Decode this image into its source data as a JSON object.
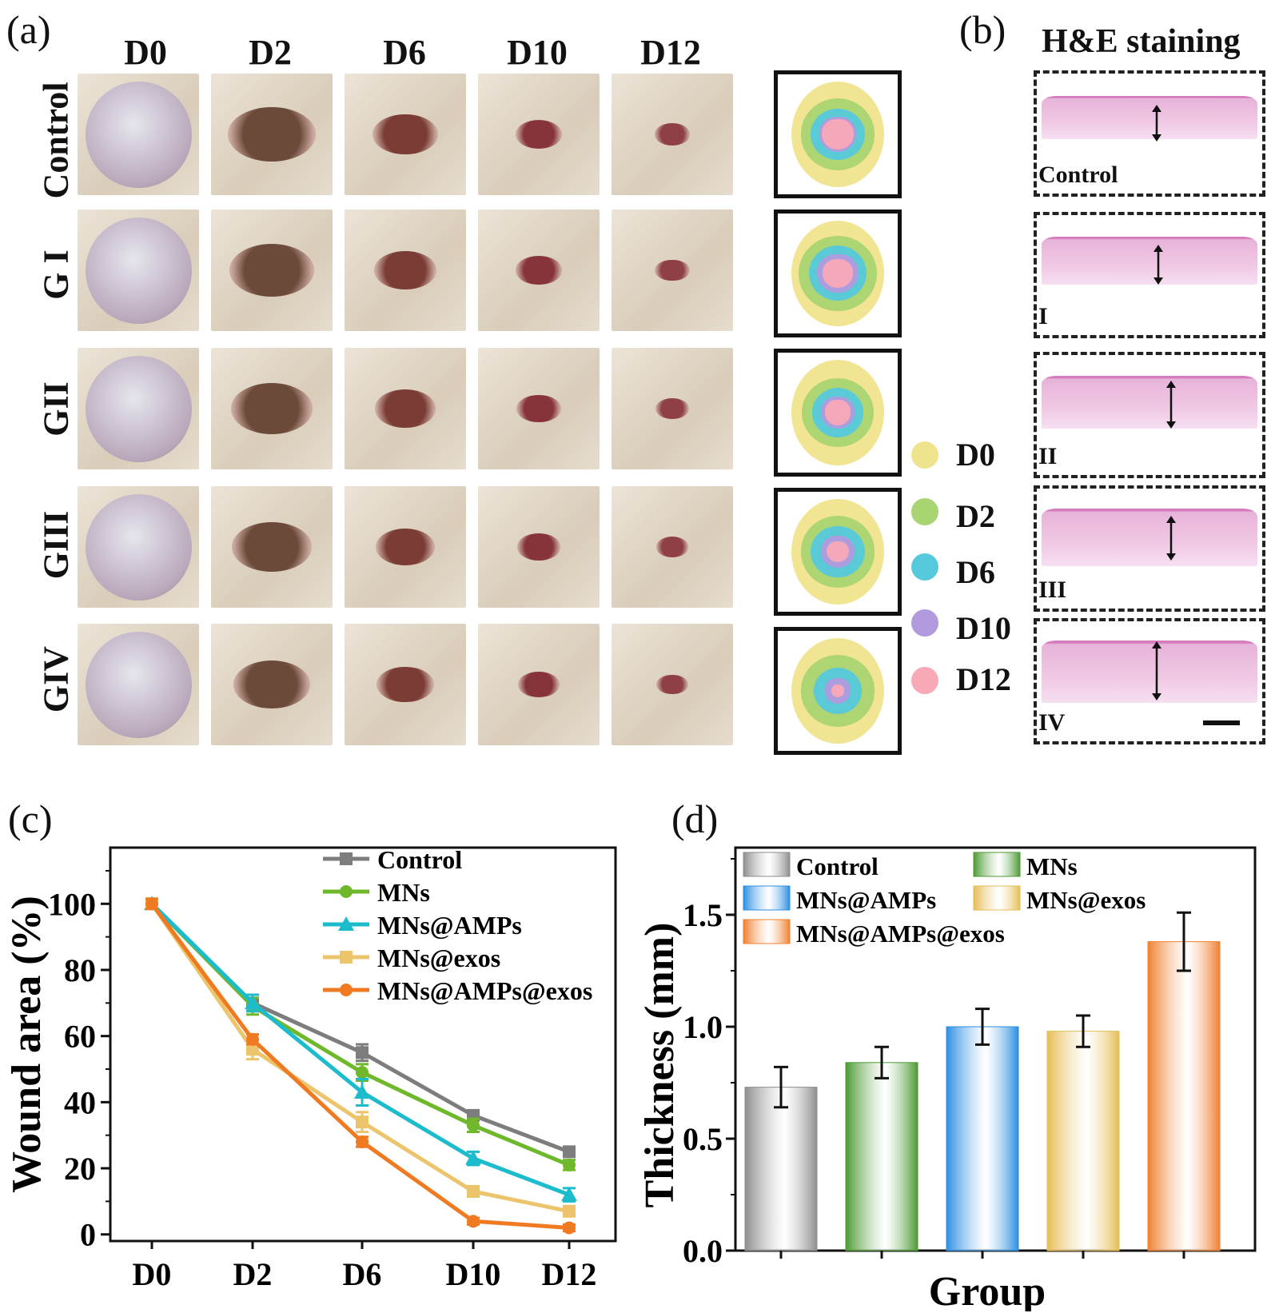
{
  "panel_a": {
    "label": "(a)",
    "days": [
      "D0",
      "D2",
      "D6",
      "D10",
      "D12"
    ],
    "groups": [
      "Control",
      "G I",
      "GII",
      "GIII",
      "GIV"
    ],
    "legend": [
      {
        "day": "D0",
        "color": "#f0e38d"
      },
      {
        "day": "D2",
        "color": "#a9d472"
      },
      {
        "day": "D6",
        "color": "#56c9dc"
      },
      {
        "day": "D10",
        "color": "#b19ade"
      },
      {
        "day": "D12",
        "color": "#f8a9b6"
      }
    ]
  },
  "panel_b": {
    "label": "(b)",
    "title": "H&E staining",
    "samples": [
      "Control",
      "I",
      "II",
      "III",
      "IV"
    ]
  },
  "panel_c": {
    "label": "(c)"
  },
  "panel_d": {
    "label": "(d)"
  },
  "chart_data": [
    {
      "type": "line",
      "title": "",
      "xlabel": "",
      "ylabel": "Wound area (%)",
      "x": [
        "D0",
        "D2",
        "D6",
        "D10",
        "D12"
      ],
      "ylim": [
        -2,
        117
      ],
      "yticks": [
        0,
        20,
        40,
        60,
        80,
        100
      ],
      "legend_position": "top-right",
      "series": [
        {
          "name": "Control",
          "color": "#7d7d7d",
          "marker": "square",
          "values": [
            100,
            70,
            55,
            36,
            25
          ],
          "errors": [
            1.5,
            2.5,
            2.5,
            1.5,
            1.5
          ]
        },
        {
          "name": "MNs",
          "color": "#6fb82b",
          "marker": "circle",
          "values": [
            100,
            69,
            49,
            33,
            21
          ],
          "errors": [
            1.5,
            2.5,
            2.5,
            2,
            1.5
          ]
        },
        {
          "name": "MNs@AMPs",
          "color": "#1dbccc",
          "marker": "triangle",
          "values": [
            100,
            70,
            43,
            23,
            12
          ],
          "errors": [
            1.5,
            2.5,
            4,
            2,
            2
          ]
        },
        {
          "name": "MNs@exos",
          "color": "#ecc46c",
          "marker": "square",
          "values": [
            100,
            56,
            34,
            13,
            7
          ],
          "errors": [
            1.5,
            3,
            3,
            1.5,
            1.5
          ]
        },
        {
          "name": "MNs@AMPs@exos",
          "color": "#f07a22",
          "marker": "circle",
          "values": [
            100,
            59,
            28,
            4,
            2
          ],
          "errors": [
            1.5,
            1.5,
            1.5,
            1,
            1
          ]
        }
      ]
    },
    {
      "type": "bar",
      "title": "",
      "xlabel": "Group",
      "ylabel": "Thickness (mm)",
      "ylim": [
        0,
        1.8
      ],
      "yticks": [
        0.0,
        0.5,
        1.0,
        1.5
      ],
      "legend_position": "top-left",
      "categories": [
        "Control",
        "MNs",
        "MNs@AMPs",
        "MNs@exos",
        "MNs@AMPs@exos"
      ],
      "values": [
        0.73,
        0.84,
        1.0,
        0.98,
        1.38
      ],
      "errors": [
        0.09,
        0.07,
        0.08,
        0.07,
        0.13
      ],
      "colors": [
        "#8e8e8e",
        "#4c9a34",
        "#2c8fe2",
        "#e6bd55",
        "#f08030"
      ]
    }
  ]
}
